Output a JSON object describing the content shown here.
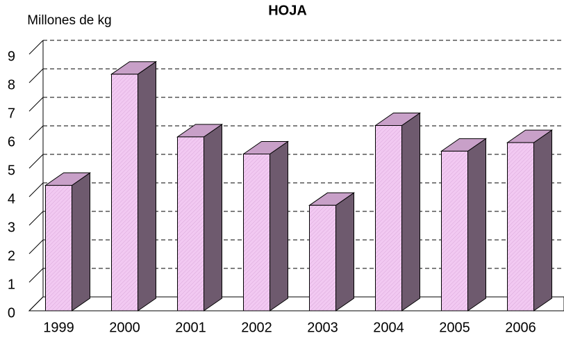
{
  "chart_data": {
    "type": "bar3d",
    "title": "HOJA",
    "ylabel": "Millones de kg",
    "categories": [
      "1999",
      "2000",
      "2001",
      "2002",
      "2003",
      "2004",
      "2005",
      "2006"
    ],
    "values": [
      4.4,
      8.3,
      6.1,
      5.5,
      3.7,
      6.5,
      5.6,
      5.9
    ],
    "color": "#f2c9f2",
    "ylim": [
      0,
      9
    ],
    "yticks": [
      0,
      1,
      2,
      3,
      4,
      5,
      6,
      7,
      8,
      9
    ],
    "grid": true
  }
}
